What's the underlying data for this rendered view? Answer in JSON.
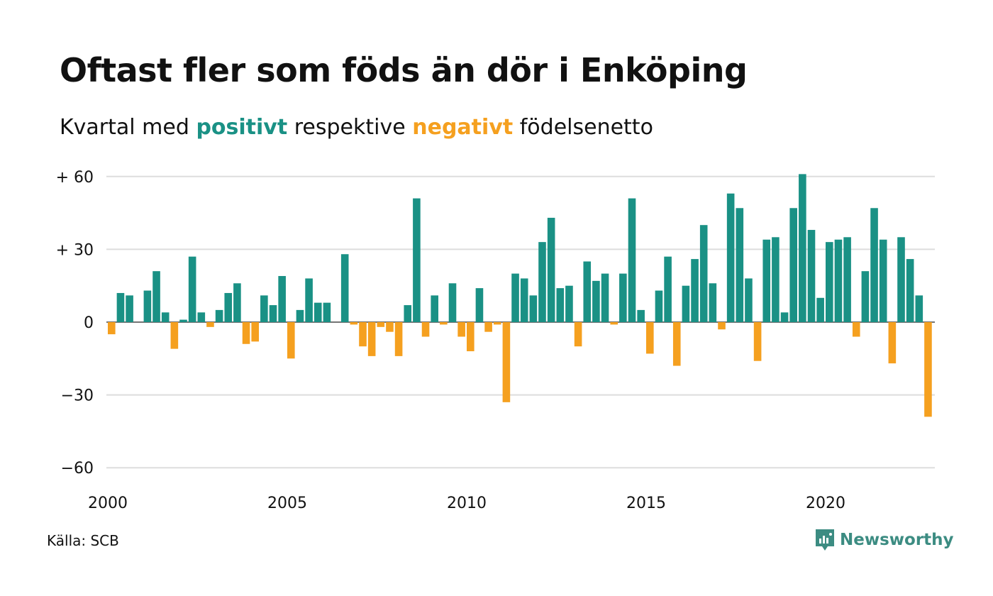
{
  "title": "Oftast fler som föds än dör i Enköping",
  "subtitle": {
    "prefix": "Kvartal med",
    "positive_word": "positivt",
    "middle": "respektive",
    "negative_word": "negativt",
    "suffix": "födelsenetto"
  },
  "source": "Källa: SCB",
  "brand": {
    "name": "Newsworthy",
    "icon": "newsworthy-logo-icon"
  },
  "colors": {
    "positive": "#1a9185",
    "negative": "#f5a01f",
    "grid": "#dddddd",
    "text": "#111111",
    "brand": "#3c8c82"
  },
  "chart_data": {
    "type": "bar",
    "title": "Oftast fler som föds än dör i Enköping",
    "subtitle": "Kvartal med positivt respektive negativt födelsenetto",
    "xlabel": "",
    "ylabel": "",
    "ylim": [
      -65,
      62
    ],
    "grid": true,
    "legend": "none",
    "y_ticks": [
      {
        "value": 60,
        "label": "+ 60"
      },
      {
        "value": 30,
        "label": "+ 30"
      },
      {
        "value": 0,
        "label": "0"
      },
      {
        "value": -30,
        "label": "−30"
      },
      {
        "value": -60,
        "label": "−60"
      }
    ],
    "x_ticks": [
      "2000",
      "2005",
      "2010",
      "2015",
      "2020"
    ],
    "categories": [
      "2000 Q1",
      "2000 Q2",
      "2000 Q3",
      "2000 Q4",
      "2001 Q1",
      "2001 Q2",
      "2001 Q3",
      "2001 Q4",
      "2002 Q1",
      "2002 Q2",
      "2002 Q3",
      "2002 Q4",
      "2003 Q1",
      "2003 Q2",
      "2003 Q3",
      "2003 Q4",
      "2004 Q1",
      "2004 Q2",
      "2004 Q3",
      "2004 Q4",
      "2005 Q1",
      "2005 Q2",
      "2005 Q3",
      "2005 Q4",
      "2006 Q1",
      "2006 Q2",
      "2006 Q3",
      "2006 Q4",
      "2007 Q1",
      "2007 Q2",
      "2007 Q3",
      "2007 Q4",
      "2008 Q1",
      "2008 Q2",
      "2008 Q3",
      "2008 Q4",
      "2009 Q1",
      "2009 Q2",
      "2009 Q3",
      "2009 Q4",
      "2010 Q1",
      "2010 Q2",
      "2010 Q3",
      "2010 Q4",
      "2011 Q1",
      "2011 Q2",
      "2011 Q3",
      "2011 Q4",
      "2012 Q1",
      "2012 Q2",
      "2012 Q3",
      "2012 Q4",
      "2013 Q1",
      "2013 Q2",
      "2013 Q3",
      "2013 Q4",
      "2014 Q1",
      "2014 Q2",
      "2014 Q3",
      "2014 Q4",
      "2015 Q1",
      "2015 Q2",
      "2015 Q3",
      "2015 Q4",
      "2016 Q1",
      "2016 Q2",
      "2016 Q3",
      "2016 Q4",
      "2017 Q1",
      "2017 Q2",
      "2017 Q3",
      "2017 Q4",
      "2018 Q1",
      "2018 Q2",
      "2018 Q3",
      "2018 Q4",
      "2019 Q1",
      "2019 Q2",
      "2019 Q3",
      "2019 Q4",
      "2020 Q1",
      "2020 Q2",
      "2020 Q3",
      "2020 Q4",
      "2021 Q1",
      "2021 Q2",
      "2021 Q3",
      "2021 Q4",
      "2022 Q1",
      "2022 Q2",
      "2022 Q3",
      "2022 Q4",
      "2023 Q1"
    ],
    "values": [
      -5,
      12,
      11,
      0,
      13,
      21,
      4,
      -11,
      1,
      27,
      4,
      -2,
      5,
      12,
      16,
      -9,
      -8,
      11,
      7,
      19,
      -15,
      5,
      18,
      8,
      8,
      0,
      28,
      -1,
      -10,
      -14,
      -2,
      -4,
      -14,
      7,
      51,
      -6,
      11,
      -1,
      16,
      -6,
      -12,
      14,
      -4,
      -1,
      -33,
      20,
      18,
      11,
      33,
      43,
      14,
      15,
      -10,
      25,
      17,
      20,
      -1,
      20,
      51,
      5,
      -13,
      13,
      27,
      -18,
      15,
      26,
      40,
      16,
      -3,
      53,
      47,
      18,
      -16,
      34,
      35,
      4,
      47,
      61,
      38,
      10,
      33,
      34,
      35,
      -6,
      21,
      47,
      34,
      -17,
      35,
      26,
      11,
      -39,
      0
    ]
  }
}
